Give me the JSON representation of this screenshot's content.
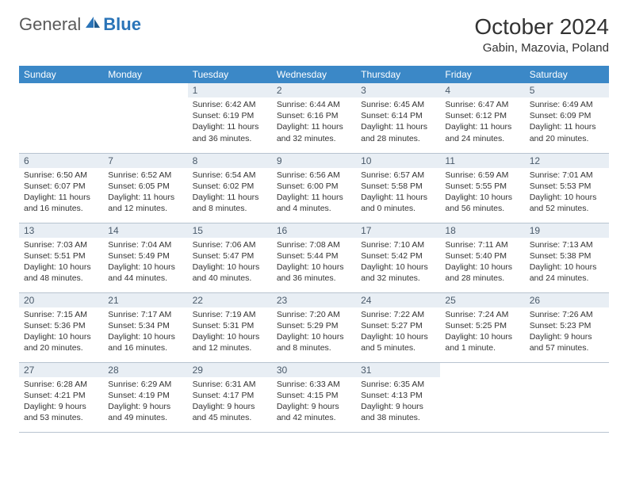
{
  "logo": {
    "text_general": "General",
    "text_blue": "Blue"
  },
  "title": {
    "month_year": "October 2024",
    "location": "Gabin, Mazovia, Poland"
  },
  "colors": {
    "header_bg": "#3b88c7",
    "header_text": "#ffffff",
    "daynum_bg": "#e8eef4",
    "daynum_text": "#4a5a6a",
    "body_text": "#333333",
    "border": "#b8c4d0",
    "logo_general": "#5a5a5a",
    "logo_blue": "#2a74b8",
    "page_bg": "#ffffff"
  },
  "day_headers": [
    "Sunday",
    "Monday",
    "Tuesday",
    "Wednesday",
    "Thursday",
    "Friday",
    "Saturday"
  ],
  "weeks": [
    [
      null,
      null,
      {
        "n": "1",
        "sunrise": "Sunrise: 6:42 AM",
        "sunset": "Sunset: 6:19 PM",
        "daylight": "Daylight: 11 hours and 36 minutes."
      },
      {
        "n": "2",
        "sunrise": "Sunrise: 6:44 AM",
        "sunset": "Sunset: 6:16 PM",
        "daylight": "Daylight: 11 hours and 32 minutes."
      },
      {
        "n": "3",
        "sunrise": "Sunrise: 6:45 AM",
        "sunset": "Sunset: 6:14 PM",
        "daylight": "Daylight: 11 hours and 28 minutes."
      },
      {
        "n": "4",
        "sunrise": "Sunrise: 6:47 AM",
        "sunset": "Sunset: 6:12 PM",
        "daylight": "Daylight: 11 hours and 24 minutes."
      },
      {
        "n": "5",
        "sunrise": "Sunrise: 6:49 AM",
        "sunset": "Sunset: 6:09 PM",
        "daylight": "Daylight: 11 hours and 20 minutes."
      }
    ],
    [
      {
        "n": "6",
        "sunrise": "Sunrise: 6:50 AM",
        "sunset": "Sunset: 6:07 PM",
        "daylight": "Daylight: 11 hours and 16 minutes."
      },
      {
        "n": "7",
        "sunrise": "Sunrise: 6:52 AM",
        "sunset": "Sunset: 6:05 PM",
        "daylight": "Daylight: 11 hours and 12 minutes."
      },
      {
        "n": "8",
        "sunrise": "Sunrise: 6:54 AM",
        "sunset": "Sunset: 6:02 PM",
        "daylight": "Daylight: 11 hours and 8 minutes."
      },
      {
        "n": "9",
        "sunrise": "Sunrise: 6:56 AM",
        "sunset": "Sunset: 6:00 PM",
        "daylight": "Daylight: 11 hours and 4 minutes."
      },
      {
        "n": "10",
        "sunrise": "Sunrise: 6:57 AM",
        "sunset": "Sunset: 5:58 PM",
        "daylight": "Daylight: 11 hours and 0 minutes."
      },
      {
        "n": "11",
        "sunrise": "Sunrise: 6:59 AM",
        "sunset": "Sunset: 5:55 PM",
        "daylight": "Daylight: 10 hours and 56 minutes."
      },
      {
        "n": "12",
        "sunrise": "Sunrise: 7:01 AM",
        "sunset": "Sunset: 5:53 PM",
        "daylight": "Daylight: 10 hours and 52 minutes."
      }
    ],
    [
      {
        "n": "13",
        "sunrise": "Sunrise: 7:03 AM",
        "sunset": "Sunset: 5:51 PM",
        "daylight": "Daylight: 10 hours and 48 minutes."
      },
      {
        "n": "14",
        "sunrise": "Sunrise: 7:04 AM",
        "sunset": "Sunset: 5:49 PM",
        "daylight": "Daylight: 10 hours and 44 minutes."
      },
      {
        "n": "15",
        "sunrise": "Sunrise: 7:06 AM",
        "sunset": "Sunset: 5:47 PM",
        "daylight": "Daylight: 10 hours and 40 minutes."
      },
      {
        "n": "16",
        "sunrise": "Sunrise: 7:08 AM",
        "sunset": "Sunset: 5:44 PM",
        "daylight": "Daylight: 10 hours and 36 minutes."
      },
      {
        "n": "17",
        "sunrise": "Sunrise: 7:10 AM",
        "sunset": "Sunset: 5:42 PM",
        "daylight": "Daylight: 10 hours and 32 minutes."
      },
      {
        "n": "18",
        "sunrise": "Sunrise: 7:11 AM",
        "sunset": "Sunset: 5:40 PM",
        "daylight": "Daylight: 10 hours and 28 minutes."
      },
      {
        "n": "19",
        "sunrise": "Sunrise: 7:13 AM",
        "sunset": "Sunset: 5:38 PM",
        "daylight": "Daylight: 10 hours and 24 minutes."
      }
    ],
    [
      {
        "n": "20",
        "sunrise": "Sunrise: 7:15 AM",
        "sunset": "Sunset: 5:36 PM",
        "daylight": "Daylight: 10 hours and 20 minutes."
      },
      {
        "n": "21",
        "sunrise": "Sunrise: 7:17 AM",
        "sunset": "Sunset: 5:34 PM",
        "daylight": "Daylight: 10 hours and 16 minutes."
      },
      {
        "n": "22",
        "sunrise": "Sunrise: 7:19 AM",
        "sunset": "Sunset: 5:31 PM",
        "daylight": "Daylight: 10 hours and 12 minutes."
      },
      {
        "n": "23",
        "sunrise": "Sunrise: 7:20 AM",
        "sunset": "Sunset: 5:29 PM",
        "daylight": "Daylight: 10 hours and 8 minutes."
      },
      {
        "n": "24",
        "sunrise": "Sunrise: 7:22 AM",
        "sunset": "Sunset: 5:27 PM",
        "daylight": "Daylight: 10 hours and 5 minutes."
      },
      {
        "n": "25",
        "sunrise": "Sunrise: 7:24 AM",
        "sunset": "Sunset: 5:25 PM",
        "daylight": "Daylight: 10 hours and 1 minute."
      },
      {
        "n": "26",
        "sunrise": "Sunrise: 7:26 AM",
        "sunset": "Sunset: 5:23 PM",
        "daylight": "Daylight: 9 hours and 57 minutes."
      }
    ],
    [
      {
        "n": "27",
        "sunrise": "Sunrise: 6:28 AM",
        "sunset": "Sunset: 4:21 PM",
        "daylight": "Daylight: 9 hours and 53 minutes."
      },
      {
        "n": "28",
        "sunrise": "Sunrise: 6:29 AM",
        "sunset": "Sunset: 4:19 PM",
        "daylight": "Daylight: 9 hours and 49 minutes."
      },
      {
        "n": "29",
        "sunrise": "Sunrise: 6:31 AM",
        "sunset": "Sunset: 4:17 PM",
        "daylight": "Daylight: 9 hours and 45 minutes."
      },
      {
        "n": "30",
        "sunrise": "Sunrise: 6:33 AM",
        "sunset": "Sunset: 4:15 PM",
        "daylight": "Daylight: 9 hours and 42 minutes."
      },
      {
        "n": "31",
        "sunrise": "Sunrise: 6:35 AM",
        "sunset": "Sunset: 4:13 PM",
        "daylight": "Daylight: 9 hours and 38 minutes."
      },
      null,
      null
    ]
  ]
}
